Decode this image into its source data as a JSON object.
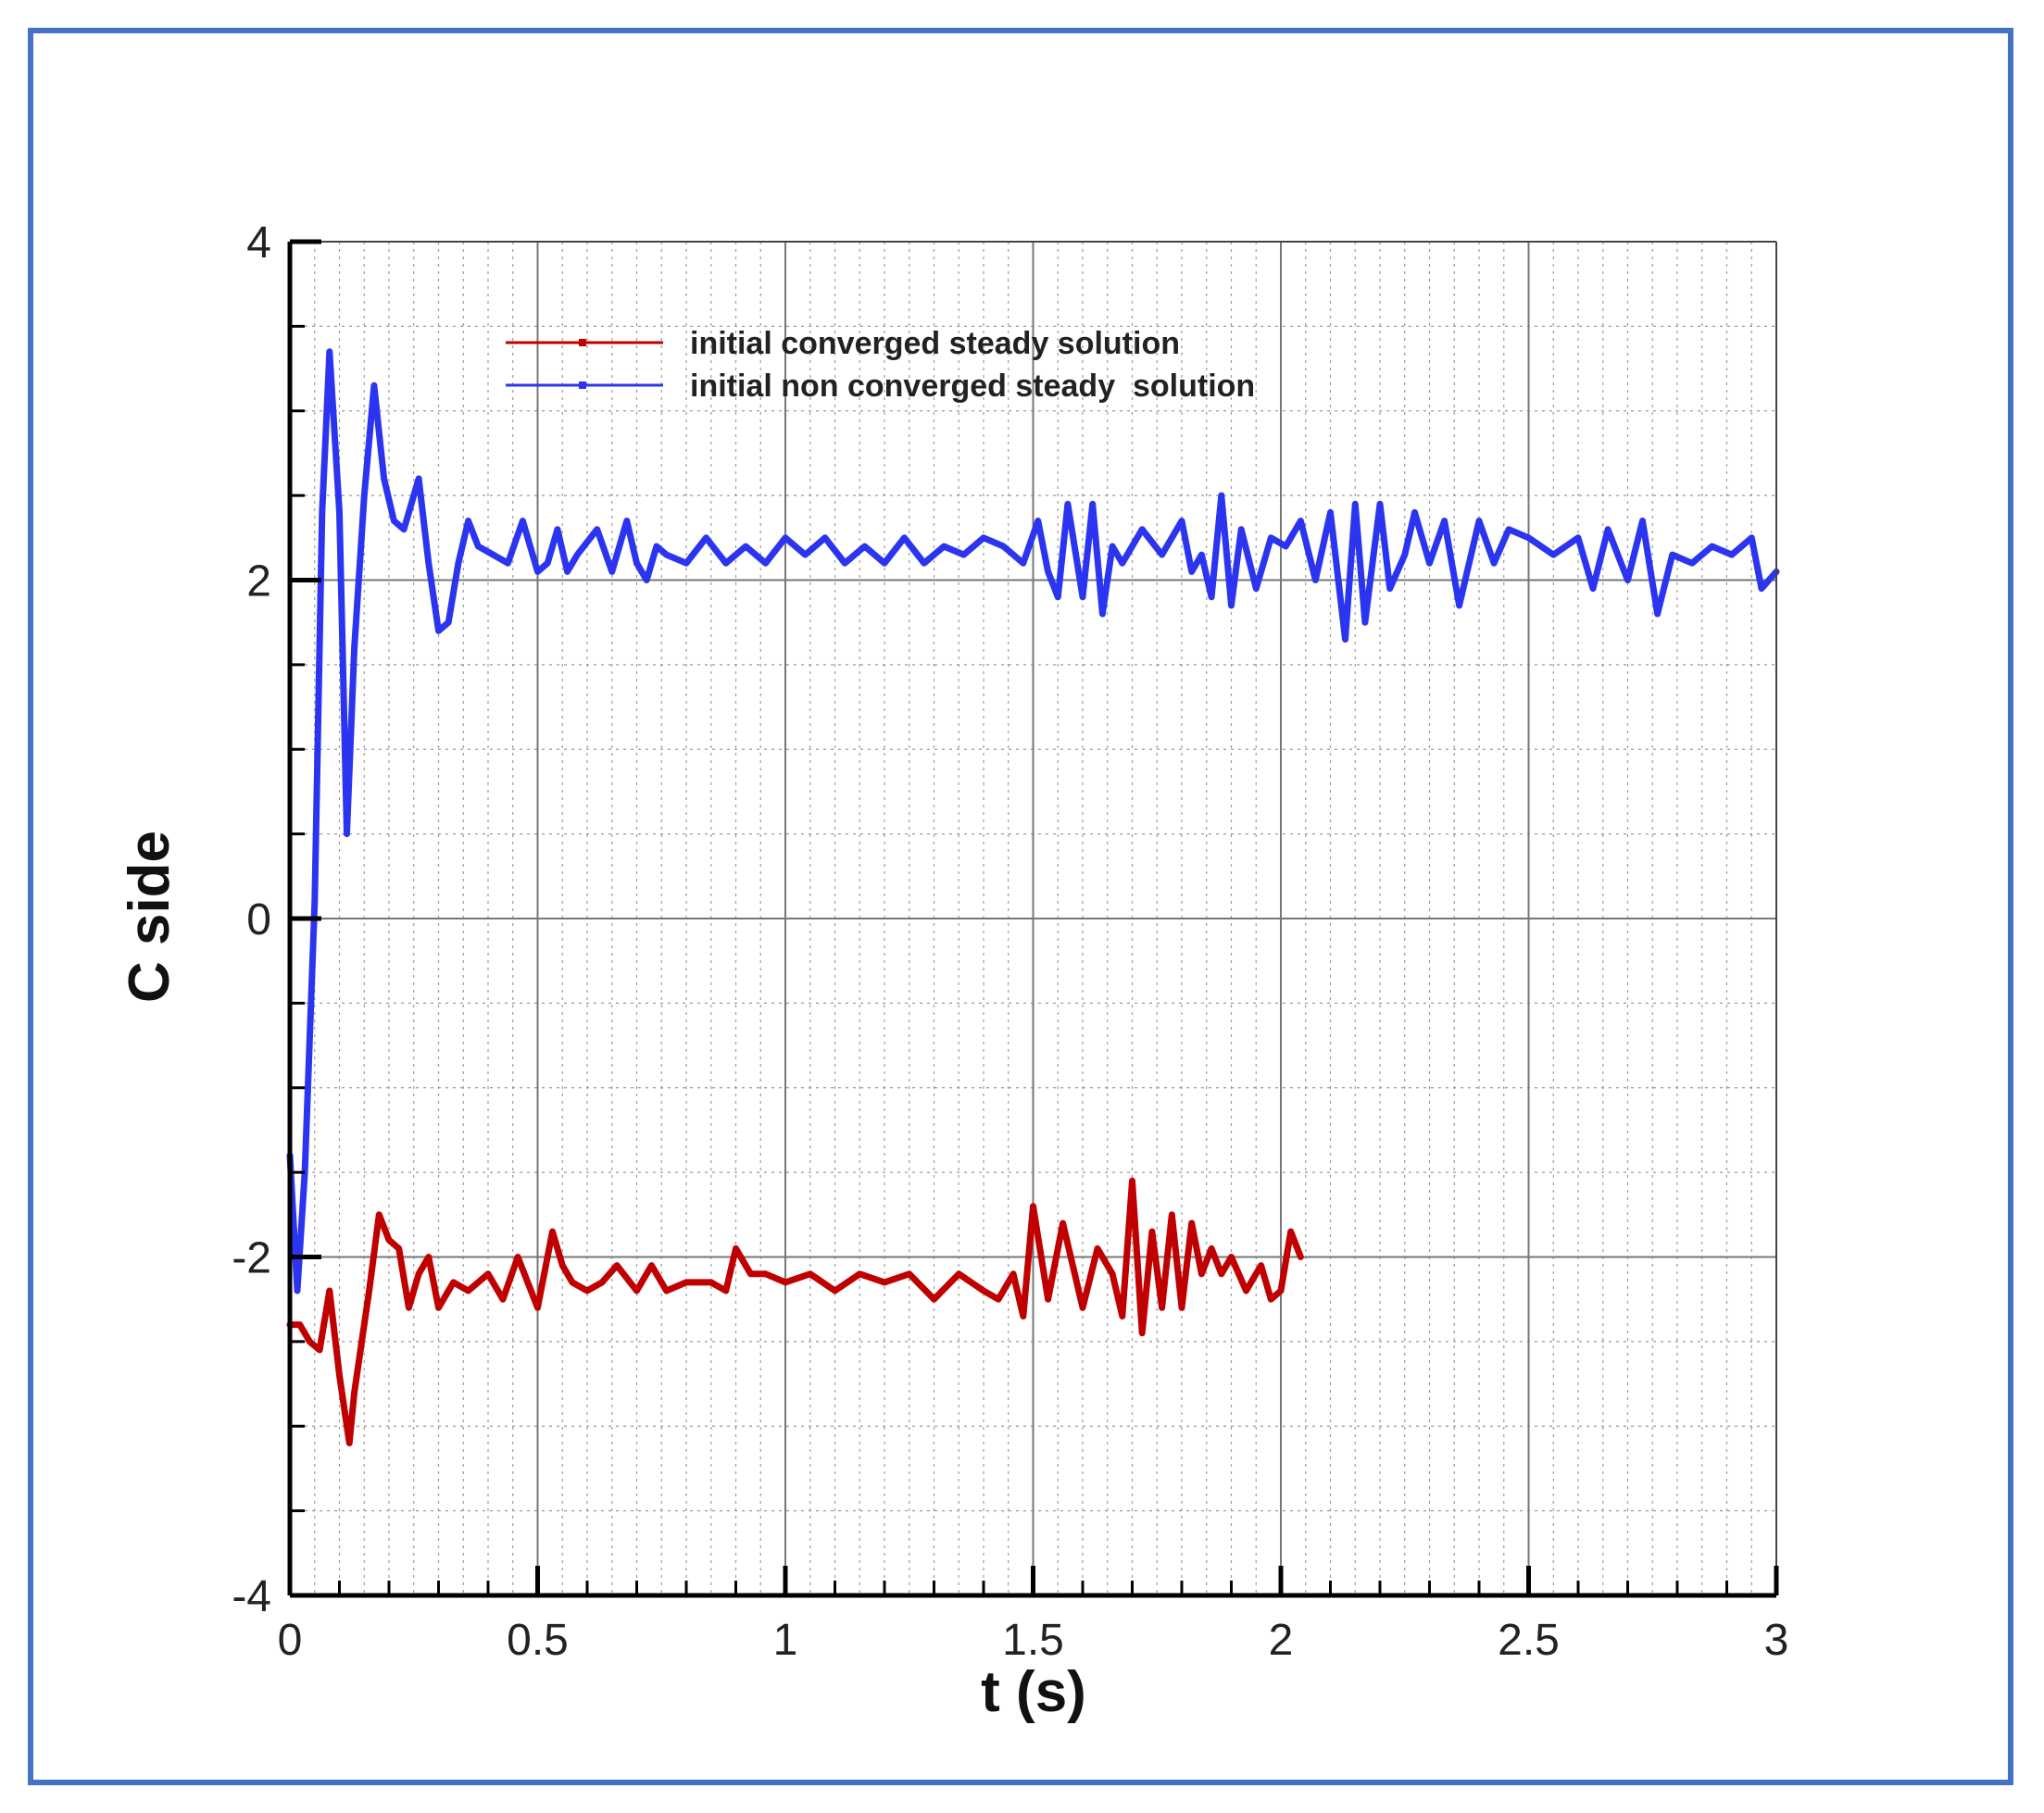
{
  "colors": {
    "frame": "#4472C4",
    "series_red": "#C00000",
    "series_blue": "#2B35F0",
    "grid_major": "#777777",
    "grid_minor": "#9a9a9a"
  },
  "chart_data": {
    "type": "line",
    "title": "",
    "xlabel": "t (s)",
    "ylabel": "C side",
    "xlim": [
      0,
      3
    ],
    "ylim": [
      -4,
      4
    ],
    "xticks": [
      0,
      0.5,
      1,
      1.5,
      2,
      2.5,
      3
    ],
    "xtick_labels": [
      "0",
      "0.5",
      "1",
      "1.5",
      "2",
      "2.5",
      "3"
    ],
    "yticks": [
      -4,
      -2,
      0,
      2,
      4
    ],
    "ytick_labels": [
      "-4",
      "-2",
      "0",
      "2",
      "4"
    ],
    "grid": true,
    "legend_position": "top-center",
    "series": [
      {
        "name": "initial converged steady solution",
        "color": "#C00000",
        "x": [
          0,
          0.02,
          0.04,
          0.06,
          0.08,
          0.1,
          0.12,
          0.13,
          0.14,
          0.16,
          0.18,
          0.2,
          0.22,
          0.24,
          0.26,
          0.28,
          0.3,
          0.33,
          0.36,
          0.4,
          0.43,
          0.46,
          0.5,
          0.53,
          0.55,
          0.57,
          0.6,
          0.63,
          0.66,
          0.7,
          0.73,
          0.76,
          0.8,
          0.85,
          0.88,
          0.9,
          0.93,
          0.96,
          1.0,
          1.05,
          1.1,
          1.15,
          1.2,
          1.25,
          1.3,
          1.35,
          1.4,
          1.43,
          1.46,
          1.48,
          1.5,
          1.53,
          1.56,
          1.6,
          1.63,
          1.66,
          1.68,
          1.7,
          1.72,
          1.74,
          1.76,
          1.78,
          1.8,
          1.82,
          1.84,
          1.86,
          1.88,
          1.9,
          1.93,
          1.96,
          1.98,
          2.0,
          2.02,
          2.04
        ],
        "y": [
          -2.4,
          -2.4,
          -2.5,
          -2.55,
          -2.2,
          -2.7,
          -3.1,
          -2.8,
          -2.6,
          -2.2,
          -1.75,
          -1.9,
          -1.95,
          -2.3,
          -2.1,
          -2.0,
          -2.3,
          -2.15,
          -2.2,
          -2.1,
          -2.25,
          -2.0,
          -2.3,
          -1.85,
          -2.05,
          -2.15,
          -2.2,
          -2.15,
          -2.05,
          -2.2,
          -2.05,
          -2.2,
          -2.15,
          -2.15,
          -2.2,
          -1.95,
          -2.1,
          -2.1,
          -2.15,
          -2.1,
          -2.2,
          -2.1,
          -2.15,
          -2.1,
          -2.25,
          -2.1,
          -2.2,
          -2.25,
          -2.1,
          -2.35,
          -1.7,
          -2.25,
          -1.8,
          -2.3,
          -1.95,
          -2.1,
          -2.35,
          -1.55,
          -2.45,
          -1.85,
          -2.3,
          -1.75,
          -2.3,
          -1.8,
          -2.1,
          -1.95,
          -2.1,
          -2.0,
          -2.2,
          -2.05,
          -2.25,
          -2.2,
          -1.85,
          -2.0
        ]
      },
      {
        "name": "initial non converged steady  solution",
        "color": "#2B35F0",
        "x": [
          0,
          0.015,
          0.03,
          0.05,
          0.065,
          0.08,
          0.1,
          0.115,
          0.13,
          0.15,
          0.17,
          0.19,
          0.21,
          0.23,
          0.26,
          0.28,
          0.3,
          0.32,
          0.34,
          0.36,
          0.38,
          0.41,
          0.44,
          0.47,
          0.5,
          0.52,
          0.54,
          0.56,
          0.58,
          0.62,
          0.65,
          0.68,
          0.7,
          0.72,
          0.74,
          0.76,
          0.8,
          0.84,
          0.88,
          0.92,
          0.96,
          1.0,
          1.04,
          1.08,
          1.12,
          1.16,
          1.2,
          1.24,
          1.28,
          1.32,
          1.36,
          1.4,
          1.44,
          1.48,
          1.51,
          1.53,
          1.55,
          1.57,
          1.6,
          1.62,
          1.64,
          1.66,
          1.68,
          1.72,
          1.76,
          1.8,
          1.82,
          1.84,
          1.86,
          1.88,
          1.9,
          1.92,
          1.95,
          1.98,
          2.01,
          2.04,
          2.07,
          2.1,
          2.13,
          2.15,
          2.17,
          2.2,
          2.22,
          2.25,
          2.27,
          2.3,
          2.33,
          2.36,
          2.4,
          2.43,
          2.46,
          2.5,
          2.55,
          2.6,
          2.63,
          2.66,
          2.7,
          2.73,
          2.76,
          2.79,
          2.83,
          2.87,
          2.91,
          2.95,
          2.97,
          3.0
        ],
        "y": [
          -1.4,
          -2.2,
          -1.5,
          0.1,
          2.4,
          3.35,
          2.4,
          0.5,
          1.6,
          2.5,
          3.15,
          2.6,
          2.35,
          2.3,
          2.6,
          2.1,
          1.7,
          1.75,
          2.1,
          2.35,
          2.2,
          2.15,
          2.1,
          2.35,
          2.05,
          2.1,
          2.3,
          2.05,
          2.15,
          2.3,
          2.05,
          2.35,
          2.1,
          2.0,
          2.2,
          2.15,
          2.1,
          2.25,
          2.1,
          2.2,
          2.1,
          2.25,
          2.15,
          2.25,
          2.1,
          2.2,
          2.1,
          2.25,
          2.1,
          2.2,
          2.15,
          2.25,
          2.2,
          2.1,
          2.35,
          2.05,
          1.9,
          2.45,
          1.9,
          2.45,
          1.8,
          2.2,
          2.1,
          2.3,
          2.15,
          2.35,
          2.05,
          2.15,
          1.9,
          2.5,
          1.85,
          2.3,
          1.95,
          2.25,
          2.2,
          2.35,
          2.0,
          2.4,
          1.65,
          2.45,
          1.75,
          2.45,
          1.95,
          2.15,
          2.4,
          2.1,
          2.35,
          1.85,
          2.35,
          2.1,
          2.3,
          2.25,
          2.15,
          2.25,
          1.95,
          2.3,
          2.0,
          2.35,
          1.8,
          2.15,
          2.1,
          2.2,
          2.15,
          2.25,
          1.95,
          2.05
        ]
      }
    ]
  }
}
